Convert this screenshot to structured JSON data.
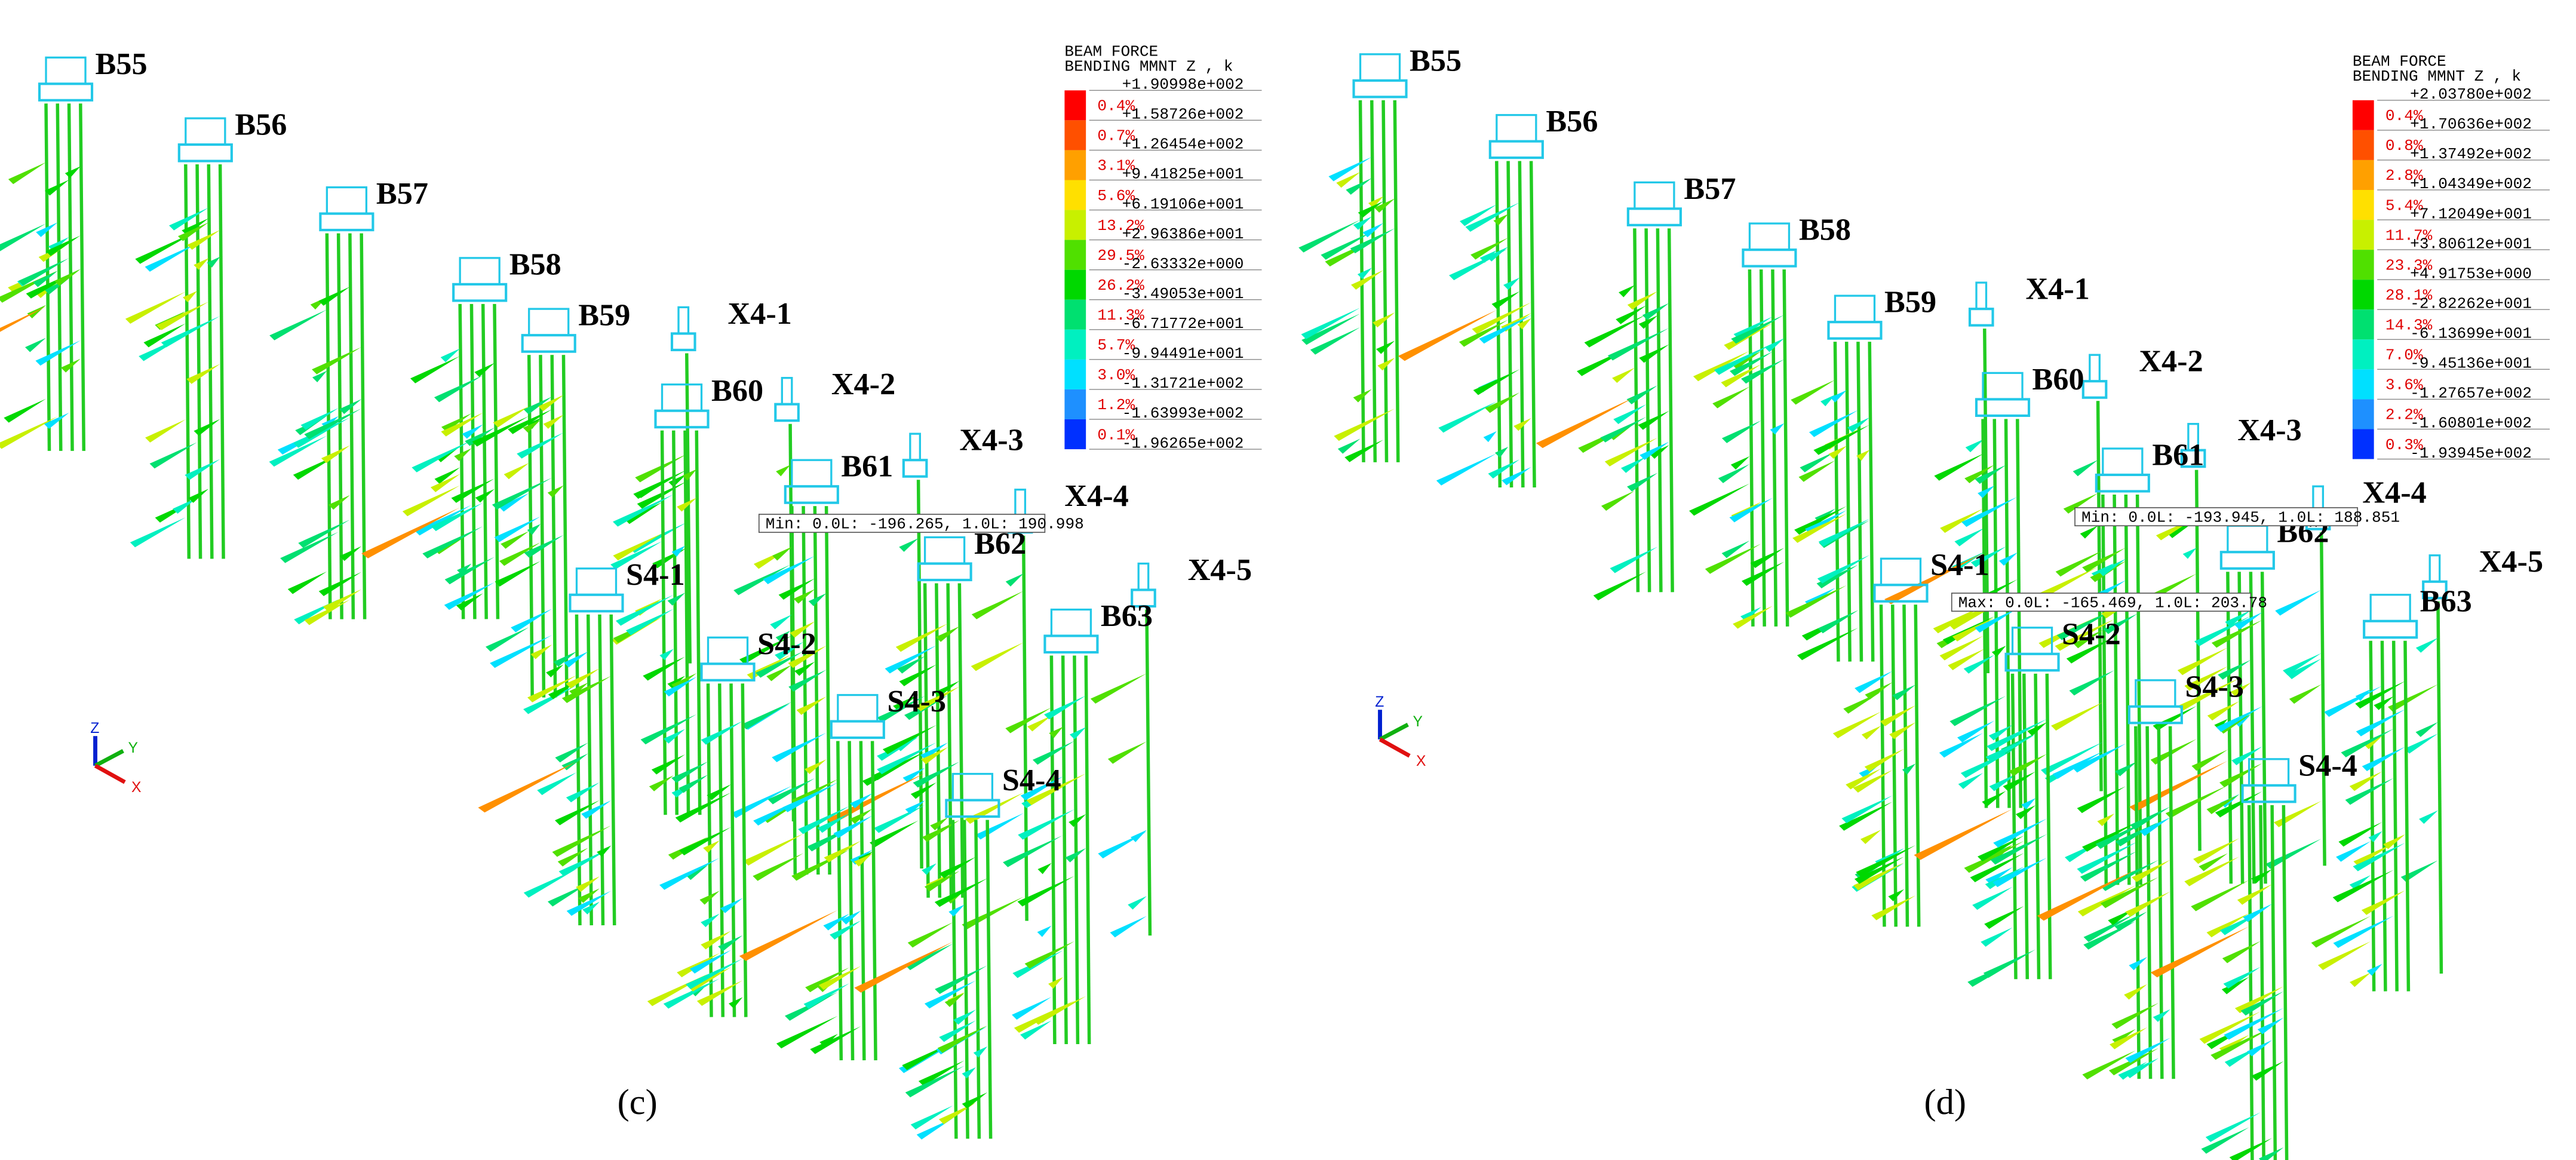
{
  "panels": [
    {
      "caption": "(c)",
      "legend": {
        "title": [
          "BEAM FORCE",
          "BENDING MMNT Z , k"
        ],
        "levels": [
          "+1.90998e+002",
          "+1.58726e+002",
          "+1.26454e+002",
          "+9.41825e+001",
          "+6.19106e+001",
          "+2.96386e+001",
          "-2.63332e+000",
          "-3.49053e+001",
          "-6.71772e+001",
          "-9.94491e+001",
          "-1.31721e+002",
          "-1.63993e+002",
          "-1.96265e+002"
        ],
        "percents": [
          "0.4%",
          "0.7%",
          "3.1%",
          "5.6%",
          "13.2%",
          "29.5%",
          "26.2%",
          "11.3%",
          "5.7%",
          "3.0%",
          "1.2%",
          "0.1%"
        ]
      },
      "annotations": [
        "Min: 0.0L: -196.265, 1.0L: 190.998"
      ],
      "axes": [
        "Z",
        "Y",
        "X"
      ],
      "labels": [
        "B55",
        "B56",
        "B57",
        "B58",
        "B59",
        "X4-1",
        "B60",
        "X4-2",
        "B61",
        "X4-3",
        "X4-4",
        "S4-1",
        "B62",
        "X4-5",
        "S4-2",
        "B63",
        "S4-3",
        "S4-4"
      ]
    },
    {
      "caption": "(d)",
      "legend": {
        "title": [
          "BEAM FORCE",
          "BENDING MMNT Z , k"
        ],
        "levels": [
          "+2.03780e+002",
          "+1.70636e+002",
          "+1.37492e+002",
          "+1.04349e+002",
          "+7.12049e+001",
          "+3.80612e+001",
          "+4.91753e+000",
          "-2.82262e+001",
          "-6.13699e+001",
          "-9.45136e+001",
          "-1.27657e+002",
          "-1.60801e+002",
          "-1.93945e+002"
        ],
        "percents": [
          "0.4%",
          "0.8%",
          "2.8%",
          "5.4%",
          "11.7%",
          "23.3%",
          "28.1%",
          "14.3%",
          "7.0%",
          "3.6%",
          "2.2%",
          "0.3%"
        ]
      },
      "annotations": [
        "Min: 0.0L: -193.945, 1.0L: 188.851",
        "Max: 0.0L: -165.469, 1.0L: 203.78"
      ],
      "axes": [
        "Z",
        "Y",
        "X"
      ],
      "labels": [
        "B55",
        "B56",
        "B57",
        "B58",
        "B59",
        "X4-1",
        "B60",
        "X4-2",
        "B61",
        "X4-3",
        "X4-4",
        "S4-1",
        "B62",
        "X4-5",
        "S4-2",
        "B63",
        "S4-3",
        "S4-4"
      ]
    }
  ]
}
